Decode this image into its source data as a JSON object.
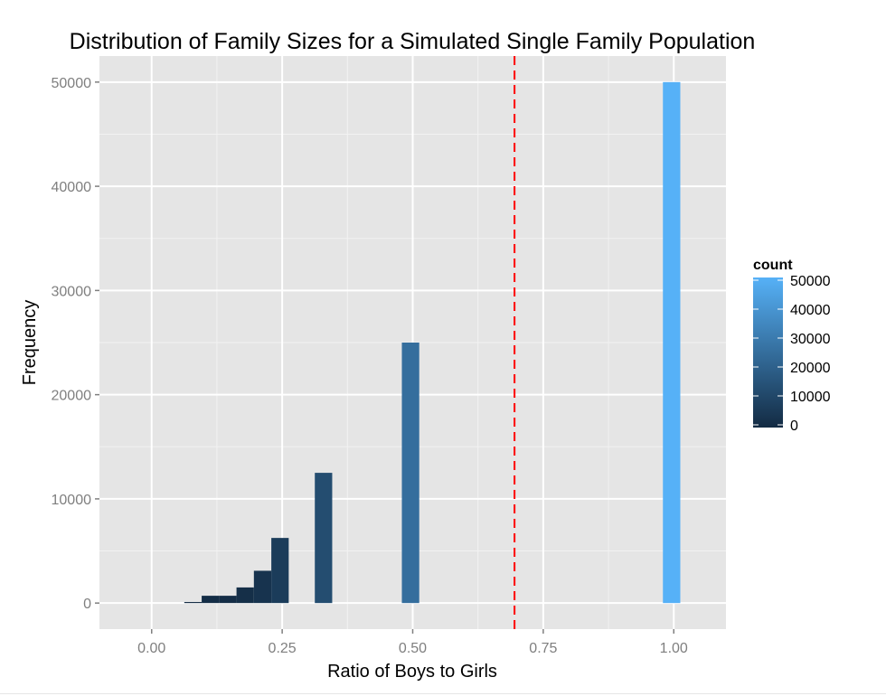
{
  "chart_data": {
    "type": "bar",
    "title": "Distribution of Family Sizes for a Simulated Single Family Population",
    "xlabel": "Ratio of Boys to Girls",
    "ylabel": "Frequency",
    "xlim": [
      -0.1,
      1.1
    ],
    "ylim": [
      -2500,
      52500
    ],
    "x_ticks": [
      0.0,
      0.25,
      0.5,
      0.75,
      1.0
    ],
    "x_tick_labels": [
      "0.00",
      "0.25",
      "0.50",
      "0.75",
      "1.00"
    ],
    "y_ticks": [
      0,
      10000,
      20000,
      30000,
      40000,
      50000
    ],
    "y_tick_labels": [
      "0",
      "10000",
      "20000",
      "30000",
      "40000",
      "50000"
    ],
    "bin_width": 0.0333,
    "bars": [
      {
        "x_start": 0.0625,
        "x_end": 0.0958,
        "count": 100
      },
      {
        "x_start": 0.0958,
        "x_end": 0.1292,
        "count": 700
      },
      {
        "x_start": 0.1292,
        "x_end": 0.1625,
        "count": 700
      },
      {
        "x_start": 0.1625,
        "x_end": 0.1958,
        "count": 1500
      },
      {
        "x_start": 0.1958,
        "x_end": 0.2292,
        "count": 3100
      },
      {
        "x_start": 0.2292,
        "x_end": 0.2625,
        "count": 6250
      },
      {
        "x_start": 0.3125,
        "x_end": 0.3458,
        "count": 12500
      },
      {
        "x_start": 0.4792,
        "x_end": 0.5125,
        "count": 25000
      },
      {
        "x_start": 0.9792,
        "x_end": 1.0125,
        "count": 50000
      }
    ],
    "vline": {
      "x": 0.695,
      "color": "#ff0000",
      "style": "dashed"
    },
    "legend": {
      "title": "count",
      "position": "right",
      "min": 0,
      "max": 50000,
      "ticks": [
        0,
        10000,
        20000,
        30000,
        40000,
        50000
      ],
      "tick_labels": [
        "0",
        "10000",
        "20000",
        "30000",
        "40000",
        "50000"
      ],
      "low_color": "#132b43",
      "high_color": "#56b1f7"
    },
    "grid": true,
    "panel_background": "#e5e5e5"
  }
}
